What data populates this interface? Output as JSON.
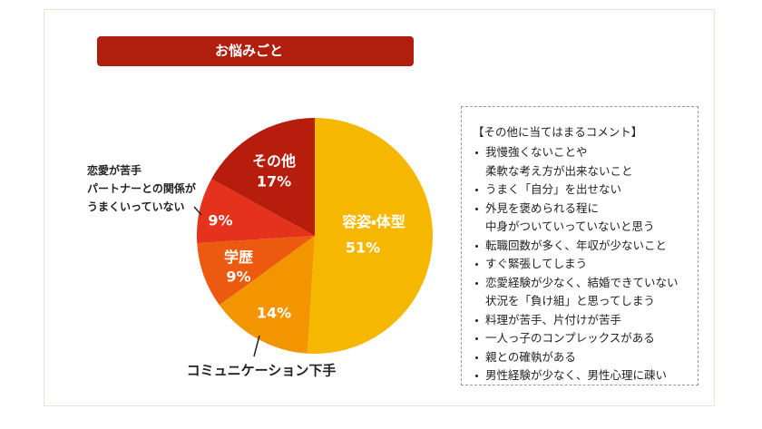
{
  "chart_data": {
    "type": "pie",
    "title": "お悩みごと",
    "categories": [
      "容姿・体型",
      "コミュニケーション下手",
      "学歴",
      "恋愛が苦手\nパートナーとの関係が\nうまくいっていない",
      "その他"
    ],
    "values": [
      51,
      14,
      9,
      9,
      17
    ],
    "value_labels": [
      "51%",
      "14%",
      "9%",
      "9%",
      "17%"
    ],
    "colors": [
      "#f5b700",
      "#f39500",
      "#ec5a0f",
      "#e5321d",
      "#b61d0d"
    ]
  },
  "comments": {
    "title": "【その他に当てはまるコメント】",
    "items": [
      "我慢強くないことや\n柔軟な考え方が出来ないこと",
      "うまく「自分」を出せない",
      "外見を褒められる程に\n中身がついていっていないと思う",
      "転職回数が多く、年収が少ないこと",
      "すぐ緊張してしまう",
      "恋愛経験が少なく、結婚できていない\n状況を「負け組」と思ってしまう",
      "料理が苦手、片付けが苦手",
      "一人っ子のコンプレックスがある",
      "親との確執がある",
      "男性経験が少なく、男性心理に疎い"
    ]
  }
}
